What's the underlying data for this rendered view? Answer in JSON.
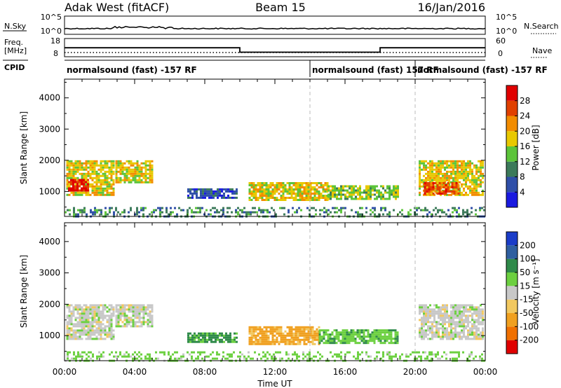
{
  "header": {
    "station": "Adak West (fitACF)",
    "beam": "Beam 15",
    "date": "16/Jan/2016"
  },
  "side_labels": {
    "nsky": "N.Sky",
    "nsearch": "N.Search",
    "freq_line1": "Freq.",
    "freq_line2": "[MHz]",
    "nave": "Nave",
    "cpid": "CPID"
  },
  "noise_axis": {
    "top_label": "10^5",
    "bottom_label": "10^0"
  },
  "freq_axis": {
    "ticks": [
      "18",
      "8"
    ]
  },
  "nave_axis": {
    "ticks": [
      "60",
      "0"
    ]
  },
  "cpid_modes": [
    {
      "start": 0.0,
      "end": 14.0,
      "label": "normalsound (fast) -157 RF"
    },
    {
      "start": 14.0,
      "end": 20.0,
      "label": "normalsound (fast) 157 RF"
    },
    {
      "start": 20.0,
      "end": 24.0,
      "label": "normalsound (fast) -157 RF"
    }
  ],
  "time_axis": {
    "label": "Time UT",
    "ticks": [
      "00:00",
      "04:00",
      "08:00",
      "12:00",
      "16:00",
      "20:00",
      "00:00"
    ],
    "tick_hours": [
      0,
      4,
      8,
      12,
      16,
      20,
      24
    ],
    "minor_step_hours": 1,
    "dashed_marker_hours": [
      14,
      20
    ]
  },
  "range_axis": {
    "label": "Slant Range [km]",
    "ticks": [
      "1000",
      "2000",
      "3000",
      "4000"
    ],
    "tick_values": [
      1000,
      2000,
      3000,
      4000
    ],
    "ylim": [
      200,
      4600
    ]
  },
  "power_scale": {
    "label": "Power [dB]",
    "ticks": [
      "4",
      "8",
      "12",
      "16",
      "20",
      "24",
      "28"
    ],
    "colors": [
      "#1a1ae0",
      "#2f4fa8",
      "#3c7a5a",
      "#5cc43a",
      "#e8c800",
      "#f28c00",
      "#e04000",
      "#e00000"
    ]
  },
  "velocity_scale": {
    "label": "Velocity [m s⁻¹]",
    "ticks": [
      "200",
      "100",
      "50",
      "15",
      "-15",
      "-50",
      "-100",
      "-200"
    ],
    "colors": [
      "#1a3cc8",
      "#2f5fa0",
      "#2f8a4a",
      "#6cd040",
      "#c8c8c8",
      "#f2c860",
      "#f0a020",
      "#f07000",
      "#e00000"
    ]
  },
  "chart_data": {
    "type": "heatmap",
    "title": "Adak West (fitACF) Beam 15 16/Jan/2016",
    "xlabel": "Time UT",
    "ylabel": "Slant Range [km]",
    "xlim": [
      0,
      24
    ],
    "ylim": [
      200,
      4600
    ],
    "freq_mhz_steps": [
      {
        "start": 0.0,
        "end": 10.0,
        "value": 14
      },
      {
        "start": 10.0,
        "end": 18.0,
        "value": 10.5
      },
      {
        "start": 18.0,
        "end": 24.0,
        "value": 14
      }
    ],
    "nave_level": 3,
    "power_echo_regions": [
      {
        "t0": 0.1,
        "t1": 2.8,
        "r0": 900,
        "r1": 2000,
        "p": 18
      },
      {
        "t0": 0.2,
        "t1": 1.4,
        "r0": 1000,
        "r1": 1400,
        "p": 28
      },
      {
        "t0": 2.9,
        "t1": 5.0,
        "r0": 1300,
        "r1": 2000,
        "p": 16
      },
      {
        "t0": 7.0,
        "t1": 9.8,
        "r0": 800,
        "r1": 1100,
        "p": 6
      },
      {
        "t0": 10.5,
        "t1": 15.0,
        "r0": 750,
        "r1": 1300,
        "p": 16
      },
      {
        "t0": 15.0,
        "t1": 19.0,
        "r0": 750,
        "r1": 1200,
        "p": 12
      },
      {
        "t0": 20.2,
        "t1": 23.9,
        "r0": 900,
        "r1": 2000,
        "p": 16
      },
      {
        "t0": 20.5,
        "t1": 22.5,
        "r0": 950,
        "r1": 1300,
        "p": 26
      },
      {
        "t0": 0.0,
        "t1": 24.0,
        "r0": 200,
        "r1": 500,
        "p": 10
      }
    ],
    "velocity_echo_regions": [
      {
        "t0": 0.1,
        "t1": 2.8,
        "r0": 900,
        "r1": 2000,
        "v": 0
      },
      {
        "t0": 2.9,
        "t1": 5.0,
        "r0": 1300,
        "r1": 2000,
        "v": 0
      },
      {
        "t0": 7.0,
        "t1": 9.8,
        "r0": 800,
        "r1": 1100,
        "v": 60
      },
      {
        "t0": 10.5,
        "t1": 14.5,
        "r0": 750,
        "r1": 1300,
        "v": -60
      },
      {
        "t0": 14.5,
        "t1": 19.0,
        "r0": 750,
        "r1": 1200,
        "v": 40
      },
      {
        "t0": 20.2,
        "t1": 23.9,
        "r0": 900,
        "r1": 2000,
        "v": 0
      },
      {
        "t0": 0.0,
        "t1": 24.0,
        "r0": 200,
        "r1": 500,
        "v": 30
      }
    ]
  }
}
